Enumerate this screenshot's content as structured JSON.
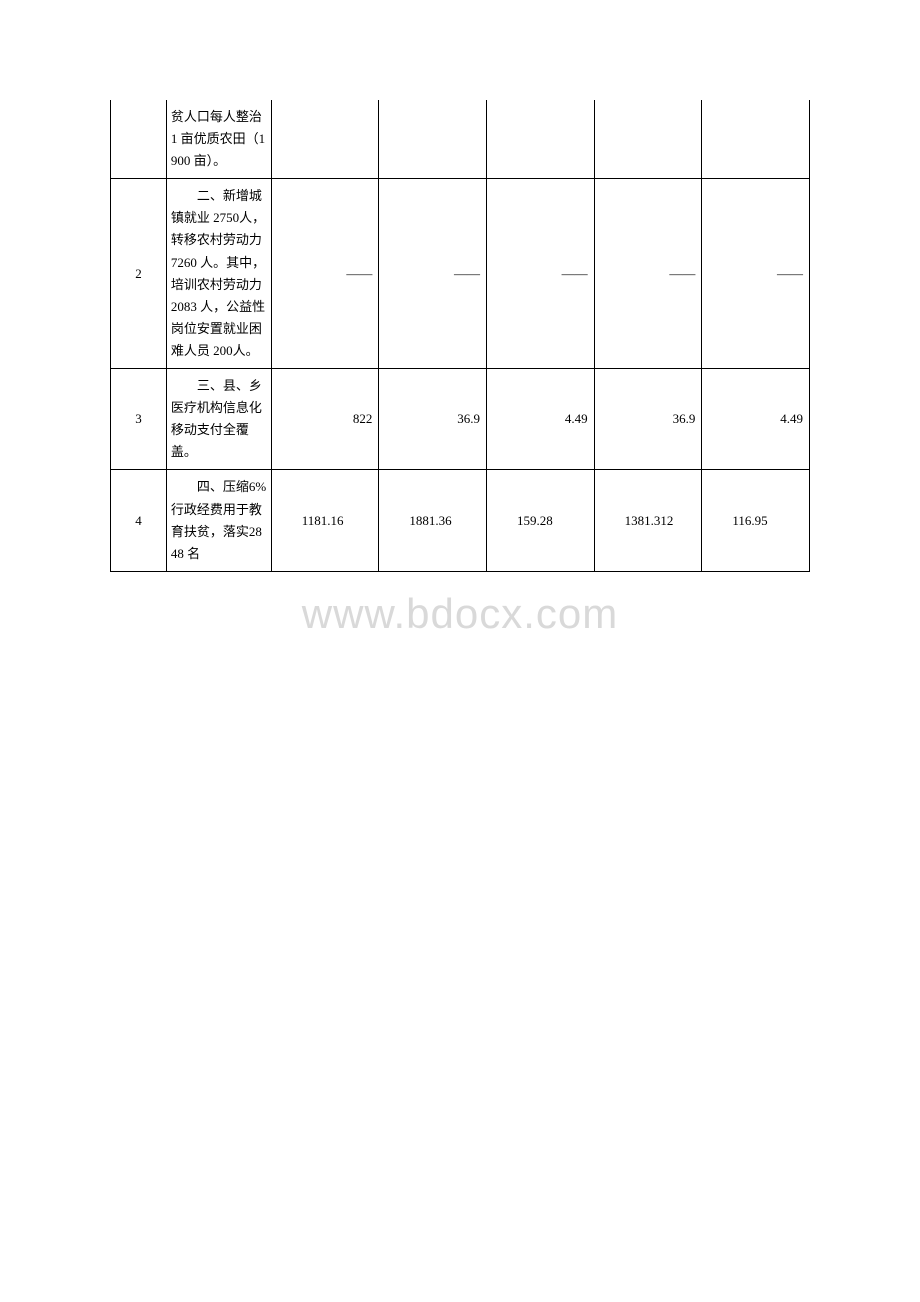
{
  "watermark": "www.bdocx.com",
  "table": {
    "columns_count": 7,
    "rows": [
      {
        "num": "",
        "desc": "贫人口每人整治 1 亩优质农田（1900 亩）。",
        "v1": "",
        "v2": "",
        "v3": "",
        "v4": "",
        "v5": "",
        "is_continuation": true
      },
      {
        "num": "2",
        "desc": "　　二、新增城镇就业 2750人，转移农村劳动力7260 人。其中，培训农村劳动力2083 人，公益性岗位安置就业困难人员 200人。",
        "v1": "——",
        "v2": "——",
        "v3": "——",
        "v4": "——",
        "v5": "——",
        "is_continuation": false
      },
      {
        "num": "3",
        "desc": "　　三、县、乡医疗机构信息化移动支付全覆盖。",
        "v1": "822",
        "v2": "36.9",
        "v3": "4.49",
        "v4": "36.9",
        "v5": "4.49",
        "is_continuation": false
      },
      {
        "num": "4",
        "desc": "　　四、压缩6%行政经费用于教育扶贫，落实2848 名",
        "v1": "　　1181.16",
        "v2": "　　1881.36",
        "v3": "　　159.28",
        "v4": "　　1381.312",
        "v5": "　　116.95",
        "is_continuation": false
      }
    ]
  }
}
